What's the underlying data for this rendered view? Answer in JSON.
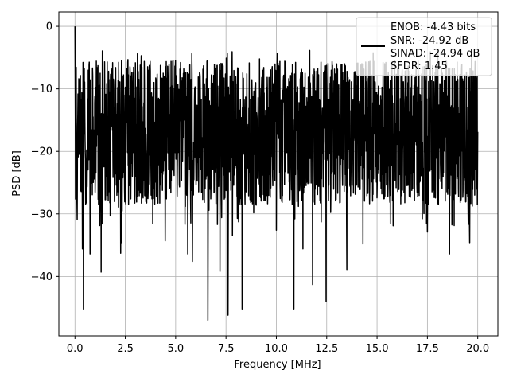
{
  "chart_data": {
    "type": "line",
    "title": "",
    "xlabel": "Frequency [MHz]",
    "ylabel": "PSD [dB]",
    "xlim": [
      -0.8,
      21.0
    ],
    "ylim": [
      -49.5,
      2.3
    ],
    "xticks": [
      0.0,
      2.5,
      5.0,
      7.5,
      10.0,
      12.5,
      15.0,
      17.5,
      20.0
    ],
    "xtick_labels": [
      "0.0",
      "2.5",
      "5.0",
      "7.5",
      "10.0",
      "12.5",
      "15.0",
      "17.5",
      "20.0"
    ],
    "yticks": [
      0,
      -10,
      -20,
      -30,
      -40
    ],
    "ytick_labels": [
      "0",
      "−10",
      "−20",
      "−30",
      "−40"
    ],
    "grid": true,
    "legend_position": "top-right",
    "legend_lines": [
      "ENOB: -4.43 bits",
      "SNR: -24.92 dB",
      "SINAD: -24.94 dB",
      "SFDR: 1.45"
    ],
    "series": [
      {
        "color": "#000000",
        "description_range": {
          "x": [
            0.0,
            20.0
          ],
          "y_min": -47.0,
          "y_max": 0.0
        },
        "x_start": 0.0,
        "x_end": 20.0,
        "peak": {
          "x": 0.0,
          "y": 0.0
        },
        "deep_dips": [
          {
            "x": 0.42,
            "y": -45.2
          },
          {
            "x": 0.37,
            "y": -35.6
          },
          {
            "x": 0.75,
            "y": -36.4
          },
          {
            "x": 1.3,
            "y": -39.3
          },
          {
            "x": 2.27,
            "y": -36.3
          },
          {
            "x": 2.32,
            "y": -34.6
          },
          {
            "x": 4.48,
            "y": -34.3
          },
          {
            "x": 5.6,
            "y": -36.4
          },
          {
            "x": 5.83,
            "y": -37.6
          },
          {
            "x": 6.6,
            "y": -47.0
          },
          {
            "x": 7.2,
            "y": -39.2
          },
          {
            "x": 7.6,
            "y": -46.2
          },
          {
            "x": 7.82,
            "y": -33.5
          },
          {
            "x": 8.3,
            "y": -45.2
          },
          {
            "x": 9.0,
            "y": -28.6
          },
          {
            "x": 10.0,
            "y": -32.6
          },
          {
            "x": 10.87,
            "y": -45.2
          },
          {
            "x": 11.32,
            "y": -35.6
          },
          {
            "x": 11.8,
            "y": -41.3
          },
          {
            "x": 12.47,
            "y": -44.0
          },
          {
            "x": 13.5,
            "y": -38.9
          },
          {
            "x": 14.3,
            "y": -34.8
          },
          {
            "x": 15.8,
            "y": -31.9
          },
          {
            "x": 17.5,
            "y": -32.9
          },
          {
            "x": 18.6,
            "y": -36.4
          },
          {
            "x": 19.6,
            "y": -34.6
          }
        ],
        "typical_band": {
          "upper_envelope_y": -6.0,
          "lower_envelope_y": -27.0,
          "median_y": -17.0
        },
        "point_count": 2000
      }
    ]
  }
}
